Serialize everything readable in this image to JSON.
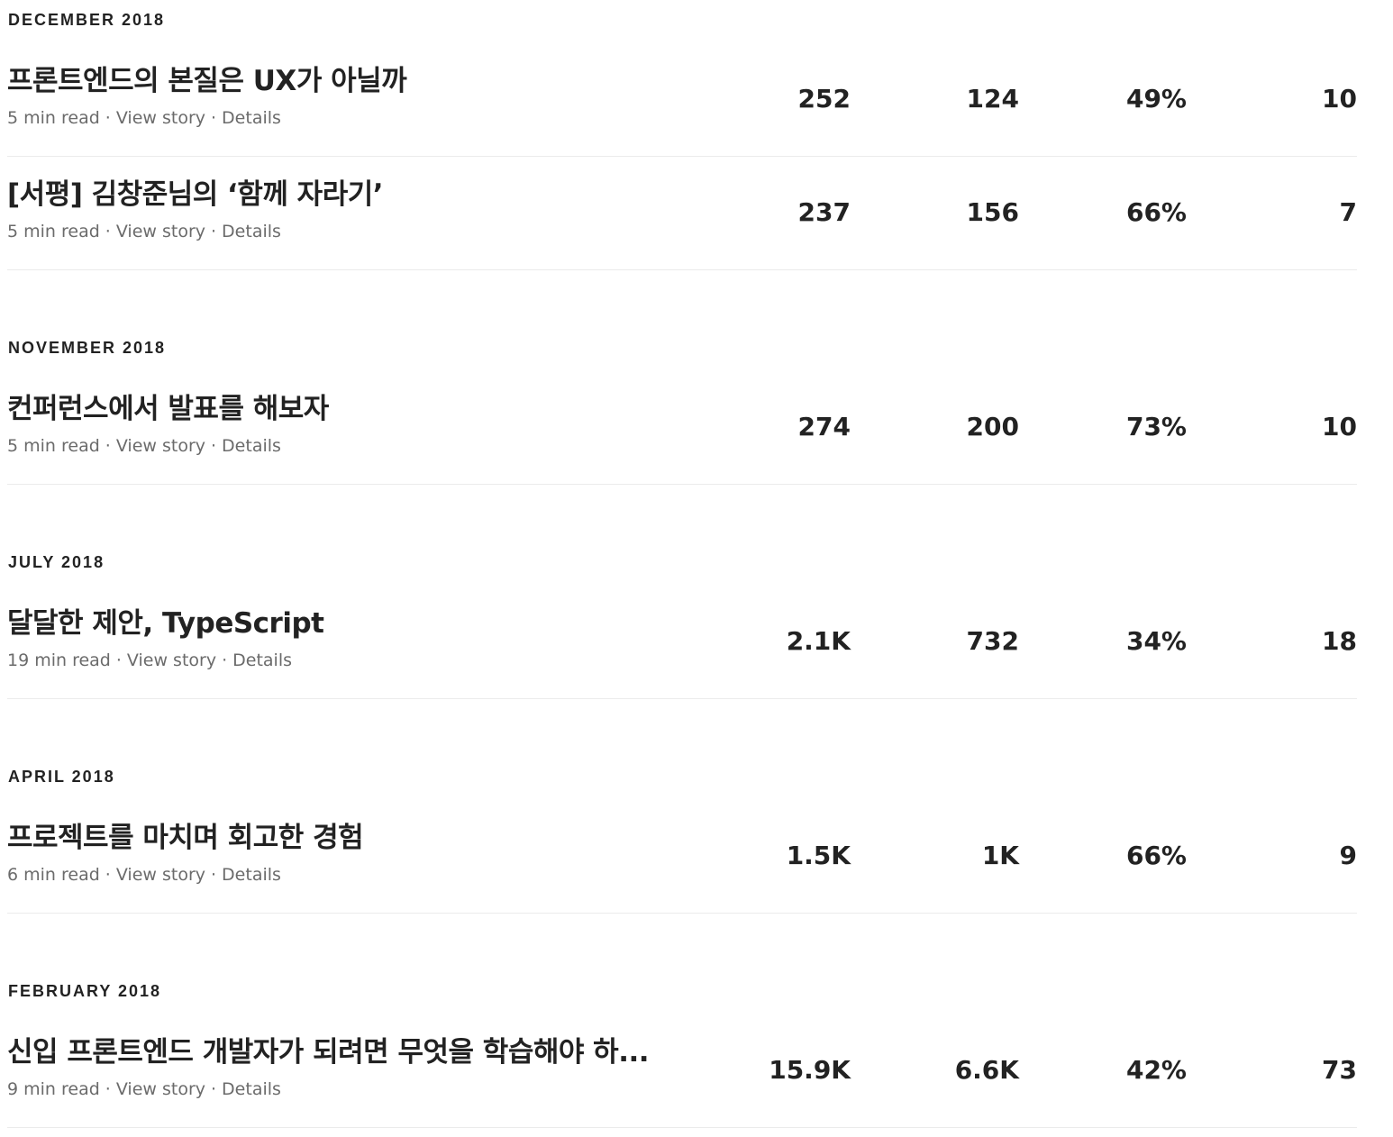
{
  "sections": [
    {
      "month": "DECEMBER 2018",
      "stories": [
        {
          "title": "프론트엔드의 본질은 UX가 아닐까",
          "read_time": "5 min read",
          "view_story": "View story",
          "details": "Details",
          "views": "252",
          "reads": "124",
          "read_ratio": "49%",
          "fans": "10"
        },
        {
          "title": "[서평] 김창준님의 ‘함께 자라기’",
          "read_time": "5 min read",
          "view_story": "View story",
          "details": "Details",
          "views": "237",
          "reads": "156",
          "read_ratio": "66%",
          "fans": "7"
        }
      ]
    },
    {
      "month": "NOVEMBER 2018",
      "stories": [
        {
          "title": "컨퍼런스에서 발표를 해보자",
          "read_time": "5 min read",
          "view_story": "View story",
          "details": "Details",
          "views": "274",
          "reads": "200",
          "read_ratio": "73%",
          "fans": "10"
        }
      ]
    },
    {
      "month": "JULY 2018",
      "stories": [
        {
          "title": "달달한 제안, TypeScript",
          "read_time": "19 min read",
          "view_story": "View story",
          "details": "Details",
          "views": "2.1K",
          "reads": "732",
          "read_ratio": "34%",
          "fans": "18"
        }
      ]
    },
    {
      "month": "APRIL 2018",
      "stories": [
        {
          "title": "프로젝트를 마치며 회고한 경험",
          "read_time": "6 min read",
          "view_story": "View story",
          "details": "Details",
          "views": "1.5K",
          "reads": "1K",
          "read_ratio": "66%",
          "fans": "9"
        }
      ]
    },
    {
      "month": "FEBRUARY 2018",
      "stories": [
        {
          "title": "신입 프론트엔드 개발자가 되려면 무엇을 학습해야 하...",
          "read_time": "9 min read",
          "view_story": "View story",
          "details": "Details",
          "views": "15.9K",
          "reads": "6.6K",
          "read_ratio": "42%",
          "fans": "73"
        }
      ]
    }
  ],
  "separator": "·"
}
